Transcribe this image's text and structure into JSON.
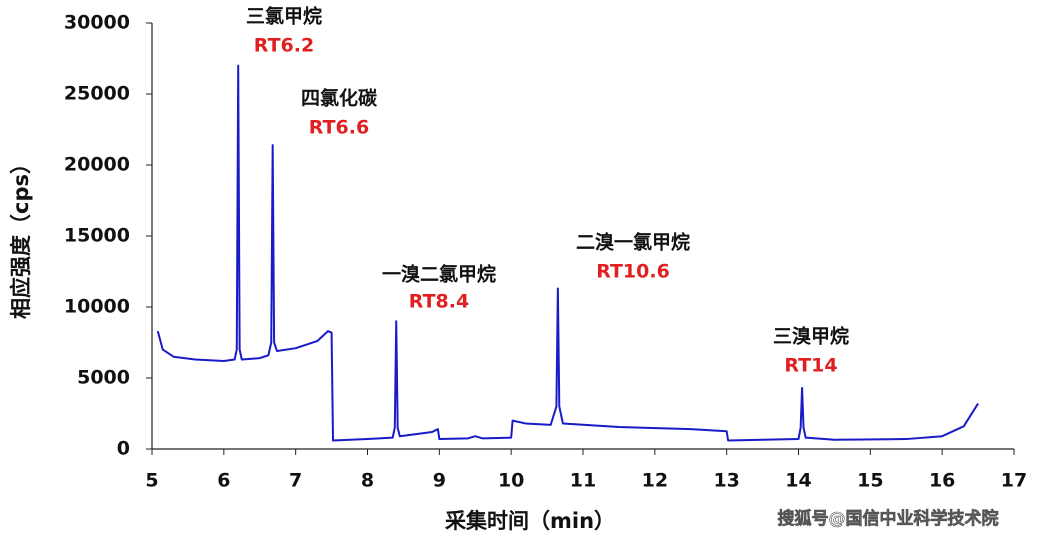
{
  "chart_data": {
    "type": "line",
    "xlabel": "采集时间（min）",
    "ylabel": "相应强度（cps）",
    "xlim": [
      5,
      17
    ],
    "xticks": [
      5,
      6,
      7,
      8,
      9,
      10,
      11,
      12,
      13,
      14,
      15,
      16,
      17
    ],
    "ylim": [
      0,
      30000
    ],
    "yticks": [
      0,
      5000,
      10000,
      15000,
      20000,
      25000,
      30000
    ],
    "grid": false,
    "series": [
      {
        "color": "#1a1ac8",
        "x": [
          5.08,
          5.15,
          5.3,
          5.6,
          6.0,
          6.15,
          6.18,
          6.2,
          6.22,
          6.25,
          6.5,
          6.62,
          6.66,
          6.68,
          6.7,
          6.74,
          7.0,
          7.3,
          7.45,
          7.5,
          7.52,
          8.0,
          8.35,
          8.38,
          8.4,
          8.42,
          8.45,
          8.9,
          8.98,
          9.0,
          9.4,
          9.5,
          9.6,
          10.0,
          10.02,
          10.2,
          10.55,
          10.63,
          10.65,
          10.67,
          10.72,
          11.5,
          12.5,
          13.0,
          13.02,
          13.5,
          14.0,
          14.03,
          14.05,
          14.07,
          14.1,
          14.5,
          15.5,
          16.0,
          16.3,
          16.5
        ],
        "values": [
          8300,
          7000,
          6500,
          6300,
          6200,
          6300,
          7000,
          27000,
          7000,
          6300,
          6400,
          6600,
          7500,
          21400,
          7500,
          6900,
          7100,
          7600,
          8300,
          8200,
          600,
          700,
          800,
          1500,
          9000,
          1500,
          900,
          1200,
          1400,
          700,
          750,
          900,
          750,
          800,
          2000,
          1800,
          1700,
          3000,
          11300,
          3000,
          1800,
          1550,
          1400,
          1250,
          600,
          650,
          700,
          1500,
          4300,
          1500,
          800,
          650,
          700,
          900,
          1600,
          3200
        ]
      }
    ],
    "annotations": [
      {
        "label": "三氯甲烷",
        "rt": "RT6.2"
      },
      {
        "label": "四氯化碳",
        "rt": "RT6.6"
      },
      {
        "label": "一溴二氯甲烷",
        "rt": "RT8.4"
      },
      {
        "label": "二溴一氯甲烷",
        "rt": "RT10.6"
      },
      {
        "label": "三溴甲烷",
        "rt": "RT14"
      }
    ]
  },
  "watermark": "搜狐号@国信中业科学技术院"
}
